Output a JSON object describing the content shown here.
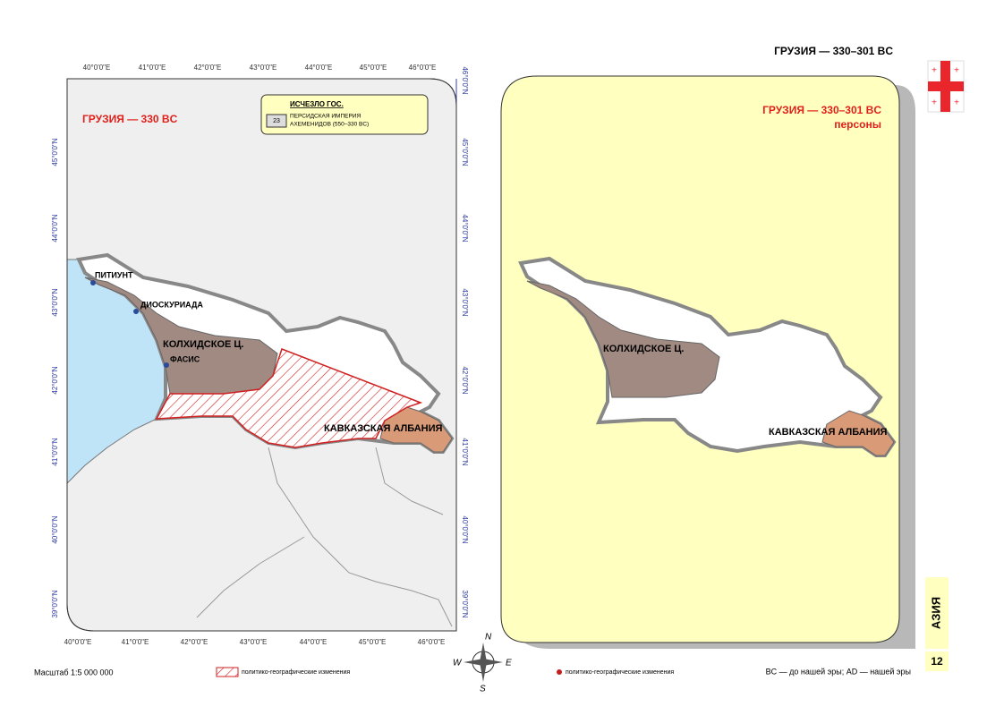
{
  "header": {
    "title": "ГРУЗИЯ — 330–301 BC"
  },
  "left_map": {
    "title": "ГРУЗИЯ — 330 BC",
    "legend": {
      "title": "ИСЧЕЗЛО ГОС.",
      "badge": "23",
      "lines": [
        "ПЕРСИДСКАЯ ИМПЕРИЯ",
        "АХЕМЕНИДОВ (550–330 BC)"
      ]
    },
    "lon_labels": [
      "40°0'0\"E",
      "41°0'0\"E",
      "42°0'0\"E",
      "43°0'0\"E",
      "44°0'0\"E",
      "45°0'0\"E",
      "46°0'0\"E"
    ],
    "lat_labels": [
      "46°0'0\"N",
      "45°0'0\"N",
      "44°0'0\"N",
      "43°0'0\"N",
      "42°0'0\"N",
      "41°0'0\"N",
      "40°0'0\"N",
      "39°0'0\"N"
    ],
    "places": [
      "ПИТИУНТ",
      "ДИОСКУРИАДА",
      "ФАСИС"
    ],
    "regions": [
      "КОЛХИДСКОЕ Ц.",
      "КАВКАЗСКАЯ АЛБАНИЯ"
    ]
  },
  "right_map": {
    "title": "ГРУЗИЯ — 330–301 BC",
    "subtitle": "персоны",
    "regions": [
      "КОЛХИДСКОЕ Ц.",
      "КАВКАЗСКАЯ АЛБАНИЯ"
    ]
  },
  "compass": [
    "N",
    "W",
    "E",
    "S"
  ],
  "footer": {
    "scale": "Масштаб 1:5 000 000",
    "legend_left": "политико-географические изменения",
    "legend_right": "политико-географические изменения",
    "era_note": "BC — до нашей эры; AD — нашей эры",
    "section": "АЗИЯ",
    "page": "12"
  }
}
